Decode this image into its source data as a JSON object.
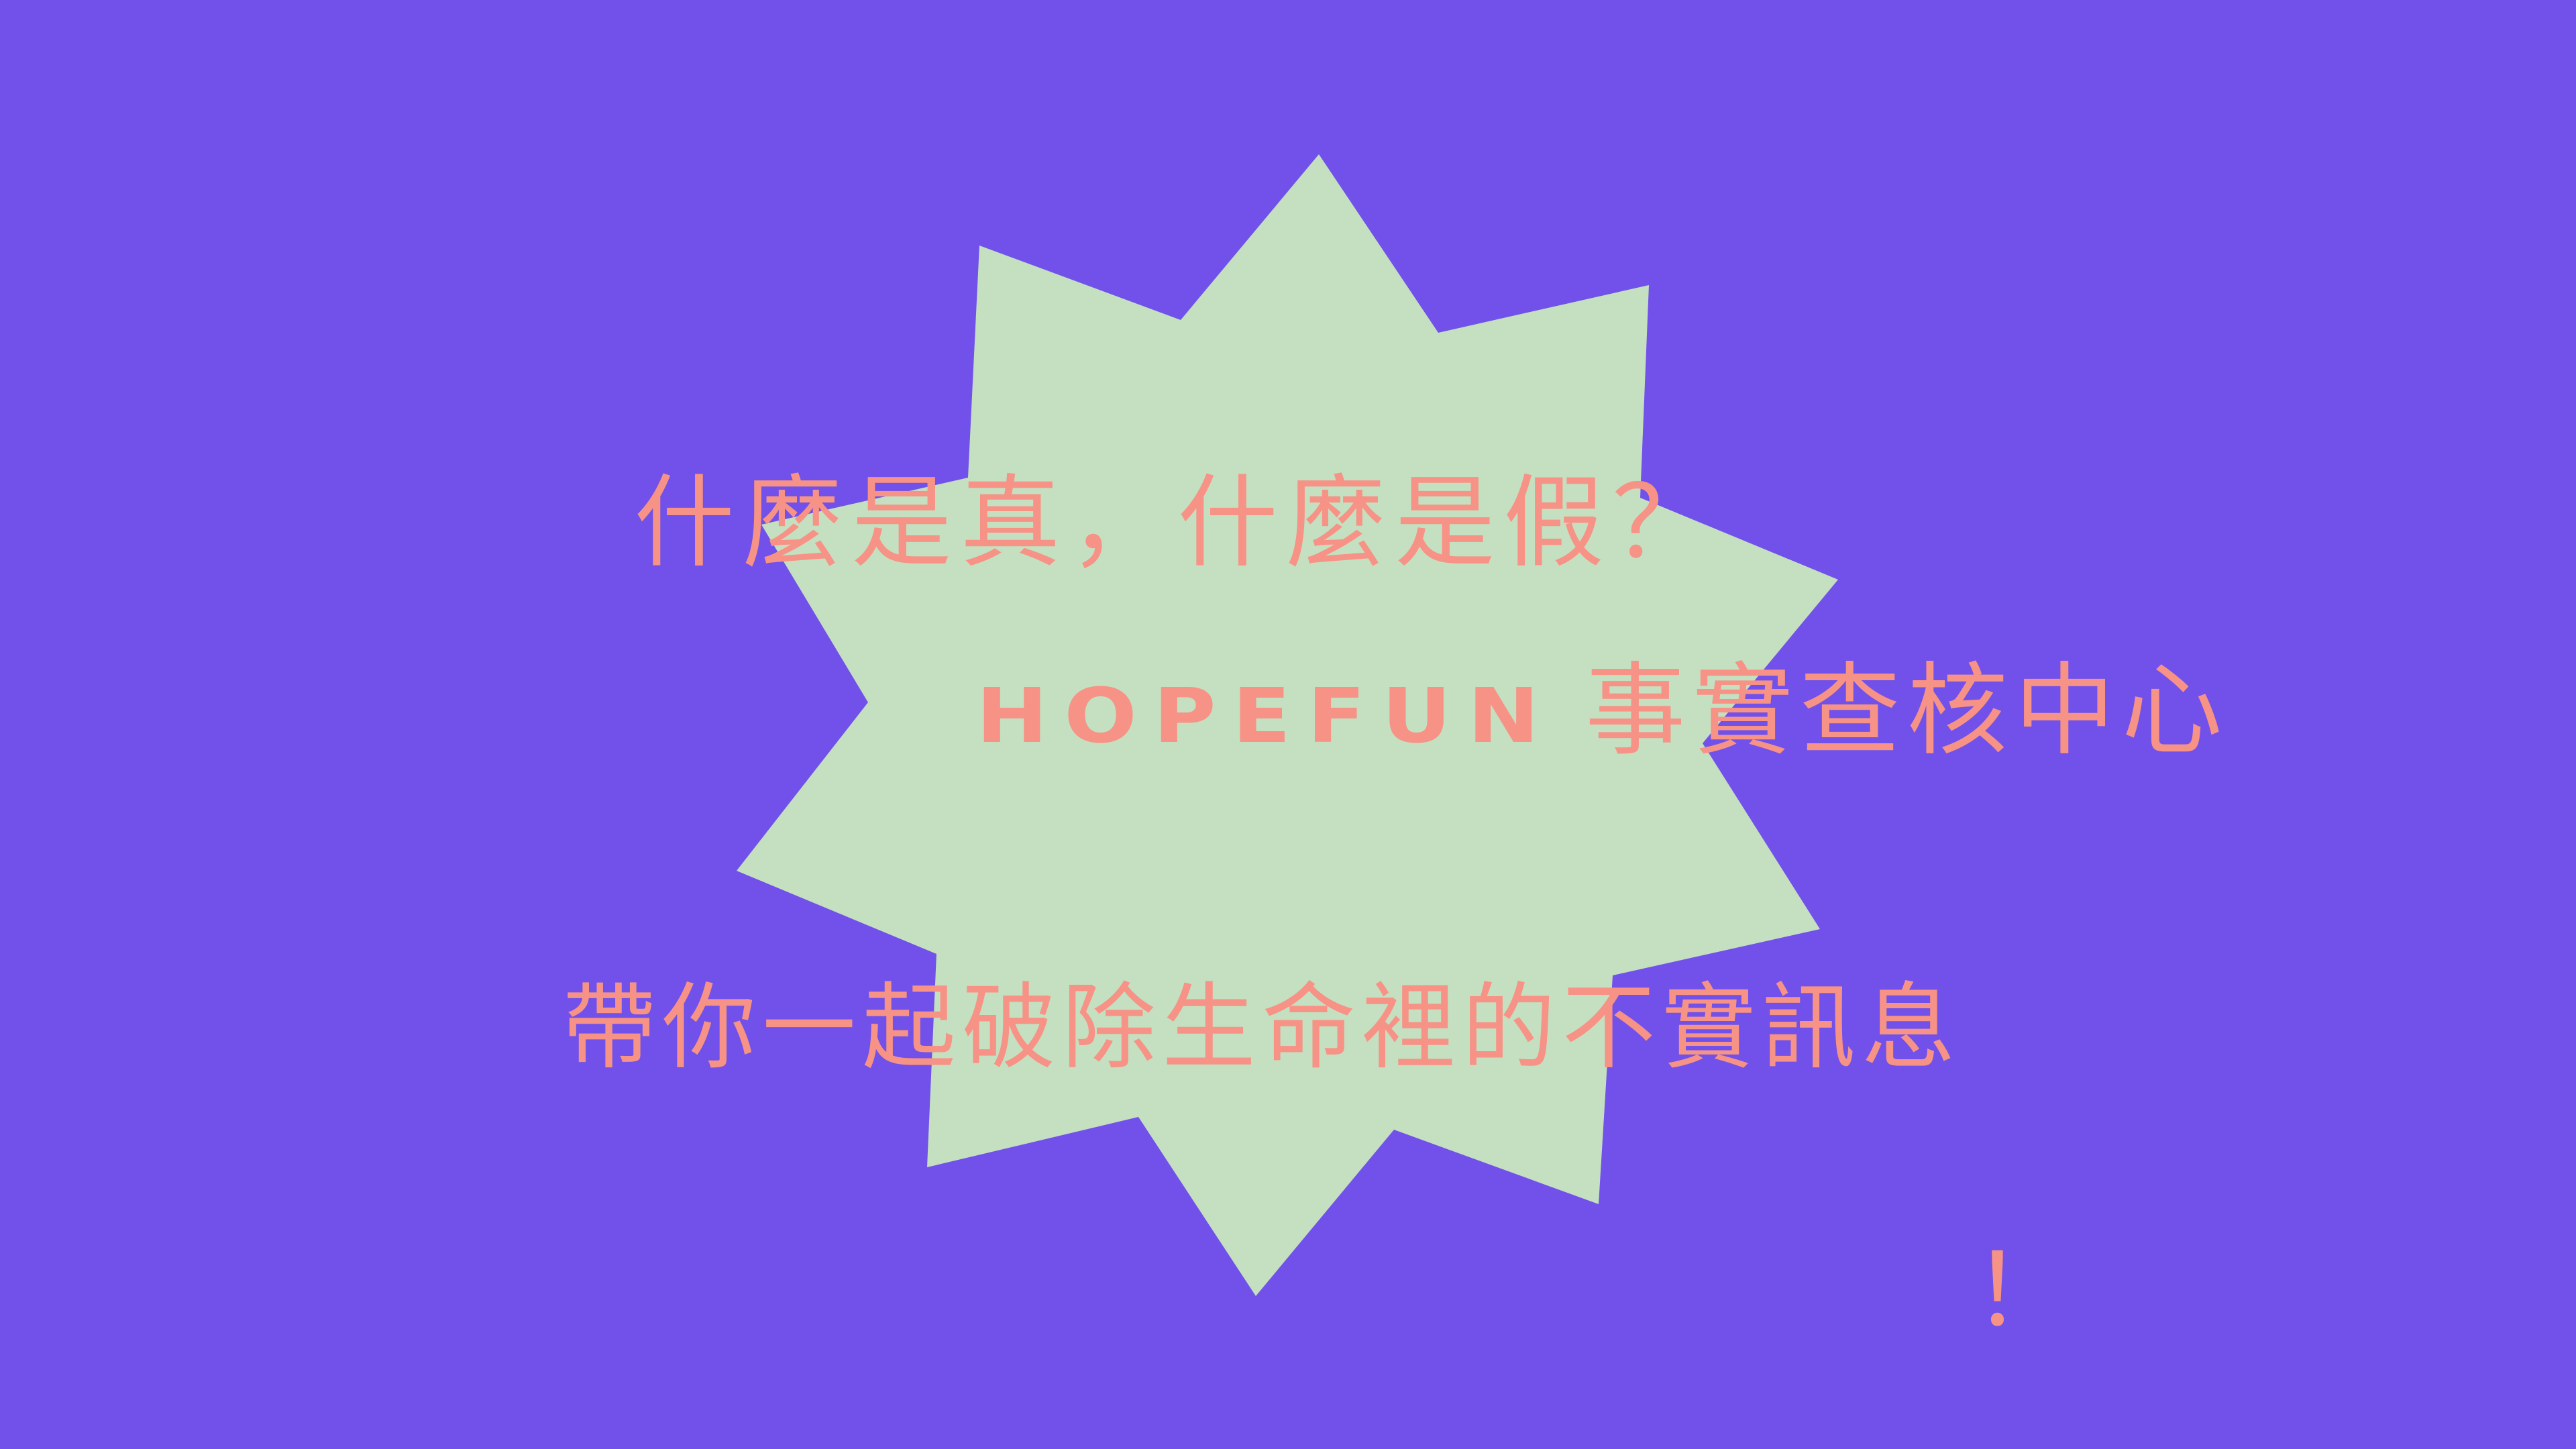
{
  "colors": {
    "background": "#7151E9",
    "burst_fill": "#C4E0C1",
    "text": "#F79286"
  },
  "decorations": {
    "burst_shape": "ten-point-starburst"
  },
  "slide": {
    "line1": "什麼是真，什麼是假？",
    "brand": "HOPEFUN",
    "center_name": "事實查核中心",
    "line3": "帶你一起破除生命裡的不實訊息",
    "exclamation": "！"
  }
}
